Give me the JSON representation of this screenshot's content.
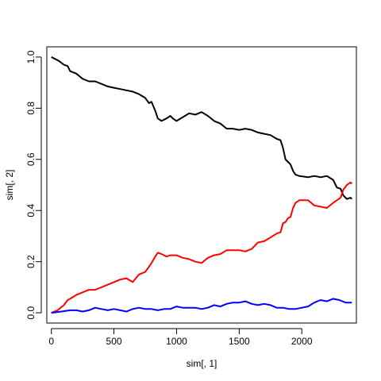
{
  "chart_data": {
    "type": "line",
    "xlabel": "sim[, 1]",
    "ylabel": "sim[, 2]",
    "xlim": [
      -36,
      2436
    ],
    "ylim": [
      -0.04,
      1.04
    ],
    "x_ticks": [
      0,
      500,
      1000,
      1500,
      2000
    ],
    "y_ticks": [
      0.0,
      0.2,
      0.4,
      0.6,
      0.8,
      1.0
    ],
    "x_tick_labels": [
      "0",
      "500",
      "1000",
      "1500",
      "2000"
    ],
    "y_tick_labels": [
      "0.0",
      "0.2",
      "0.4",
      "0.6",
      "0.8",
      "1.0"
    ],
    "grid": false,
    "series": [
      {
        "color": "#000000",
        "points": [
          [
            0,
            1.0
          ],
          [
            60,
            0.985
          ],
          [
            100,
            0.97
          ],
          [
            130,
            0.965
          ],
          [
            150,
            0.945
          ],
          [
            200,
            0.935
          ],
          [
            250,
            0.915
          ],
          [
            300,
            0.905
          ],
          [
            350,
            0.905
          ],
          [
            400,
            0.895
          ],
          [
            450,
            0.885
          ],
          [
            500,
            0.88
          ],
          [
            550,
            0.875
          ],
          [
            600,
            0.87
          ],
          [
            650,
            0.865
          ],
          [
            700,
            0.855
          ],
          [
            750,
            0.84
          ],
          [
            780,
            0.82
          ],
          [
            800,
            0.825
          ],
          [
            830,
            0.79
          ],
          [
            850,
            0.76
          ],
          [
            880,
            0.75
          ],
          [
            920,
            0.76
          ],
          [
            950,
            0.77
          ],
          [
            970,
            0.76
          ],
          [
            1000,
            0.75
          ],
          [
            1050,
            0.765
          ],
          [
            1100,
            0.78
          ],
          [
            1150,
            0.775
          ],
          [
            1200,
            0.785
          ],
          [
            1250,
            0.77
          ],
          [
            1300,
            0.75
          ],
          [
            1350,
            0.74
          ],
          [
            1400,
            0.72
          ],
          [
            1450,
            0.72
          ],
          [
            1500,
            0.715
          ],
          [
            1550,
            0.72
          ],
          [
            1600,
            0.715
          ],
          [
            1650,
            0.705
          ],
          [
            1700,
            0.7
          ],
          [
            1750,
            0.695
          ],
          [
            1800,
            0.68
          ],
          [
            1830,
            0.675
          ],
          [
            1850,
            0.645
          ],
          [
            1870,
            0.6
          ],
          [
            1890,
            0.59
          ],
          [
            1910,
            0.58
          ],
          [
            1930,
            0.555
          ],
          [
            1950,
            0.54
          ],
          [
            1980,
            0.535
          ],
          [
            2050,
            0.53
          ],
          [
            2100,
            0.535
          ],
          [
            2150,
            0.53
          ],
          [
            2200,
            0.535
          ],
          [
            2250,
            0.52
          ],
          [
            2280,
            0.49
          ],
          [
            2310,
            0.485
          ],
          [
            2330,
            0.46
          ],
          [
            2360,
            0.445
          ],
          [
            2390,
            0.45
          ],
          [
            2400,
            0.445
          ]
        ]
      },
      {
        "color": "#ff0000",
        "points": [
          [
            0,
            0.0
          ],
          [
            50,
            0.01
          ],
          [
            100,
            0.03
          ],
          [
            130,
            0.05
          ],
          [
            150,
            0.055
          ],
          [
            200,
            0.07
          ],
          [
            250,
            0.08
          ],
          [
            300,
            0.09
          ],
          [
            350,
            0.09
          ],
          [
            400,
            0.1
          ],
          [
            450,
            0.11
          ],
          [
            500,
            0.12
          ],
          [
            550,
            0.13
          ],
          [
            600,
            0.135
          ],
          [
            650,
            0.12
          ],
          [
            700,
            0.15
          ],
          [
            750,
            0.16
          ],
          [
            780,
            0.18
          ],
          [
            800,
            0.195
          ],
          [
            830,
            0.22
          ],
          [
            850,
            0.235
          ],
          [
            880,
            0.23
          ],
          [
            920,
            0.22
          ],
          [
            950,
            0.225
          ],
          [
            1000,
            0.225
          ],
          [
            1050,
            0.215
          ],
          [
            1100,
            0.21
          ],
          [
            1150,
            0.2
          ],
          [
            1200,
            0.195
          ],
          [
            1250,
            0.215
          ],
          [
            1300,
            0.225
          ],
          [
            1350,
            0.23
          ],
          [
            1400,
            0.245
          ],
          [
            1450,
            0.245
          ],
          [
            1500,
            0.245
          ],
          [
            1550,
            0.24
          ],
          [
            1600,
            0.25
          ],
          [
            1650,
            0.275
          ],
          [
            1700,
            0.28
          ],
          [
            1750,
            0.295
          ],
          [
            1800,
            0.31
          ],
          [
            1830,
            0.315
          ],
          [
            1850,
            0.35
          ],
          [
            1870,
            0.355
          ],
          [
            1890,
            0.37
          ],
          [
            1910,
            0.375
          ],
          [
            1930,
            0.41
          ],
          [
            1950,
            0.43
          ],
          [
            1980,
            0.44
          ],
          [
            2050,
            0.44
          ],
          [
            2100,
            0.42
          ],
          [
            2150,
            0.415
          ],
          [
            2200,
            0.41
          ],
          [
            2250,
            0.43
          ],
          [
            2280,
            0.44
          ],
          [
            2310,
            0.45
          ],
          [
            2330,
            0.48
          ],
          [
            2360,
            0.5
          ],
          [
            2390,
            0.51
          ],
          [
            2400,
            0.505
          ]
        ]
      },
      {
        "color": "#0000ff",
        "points": [
          [
            0,
            0.0
          ],
          [
            80,
            0.005
          ],
          [
            150,
            0.01
          ],
          [
            200,
            0.01
          ],
          [
            250,
            0.005
          ],
          [
            300,
            0.01
          ],
          [
            350,
            0.02
          ],
          [
            400,
            0.015
          ],
          [
            450,
            0.01
          ],
          [
            500,
            0.015
          ],
          [
            550,
            0.01
          ],
          [
            600,
            0.005
          ],
          [
            650,
            0.015
          ],
          [
            700,
            0.02
          ],
          [
            750,
            0.015
          ],
          [
            800,
            0.015
          ],
          [
            850,
            0.01
          ],
          [
            900,
            0.015
          ],
          [
            950,
            0.015
          ],
          [
            1000,
            0.025
          ],
          [
            1050,
            0.02
          ],
          [
            1100,
            0.02
          ],
          [
            1150,
            0.02
          ],
          [
            1200,
            0.015
          ],
          [
            1250,
            0.02
          ],
          [
            1300,
            0.03
          ],
          [
            1350,
            0.025
          ],
          [
            1400,
            0.035
          ],
          [
            1450,
            0.04
          ],
          [
            1500,
            0.04
          ],
          [
            1550,
            0.045
          ],
          [
            1600,
            0.035
          ],
          [
            1650,
            0.03
          ],
          [
            1700,
            0.035
          ],
          [
            1750,
            0.03
          ],
          [
            1800,
            0.02
          ],
          [
            1850,
            0.02
          ],
          [
            1900,
            0.015
          ],
          [
            1950,
            0.015
          ],
          [
            2000,
            0.02
          ],
          [
            2050,
            0.025
          ],
          [
            2100,
            0.04
          ],
          [
            2150,
            0.05
          ],
          [
            2200,
            0.045
          ],
          [
            2250,
            0.055
          ],
          [
            2300,
            0.05
          ],
          [
            2350,
            0.04
          ],
          [
            2400,
            0.04
          ]
        ]
      }
    ]
  }
}
